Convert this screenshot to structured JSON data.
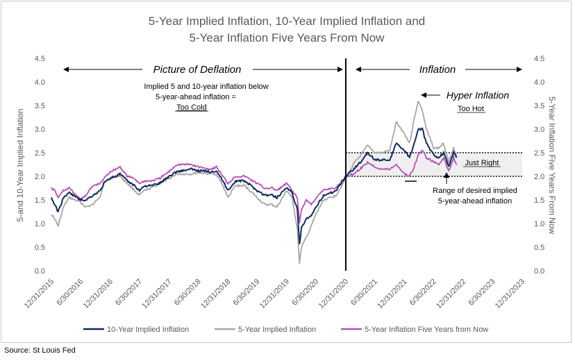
{
  "source": "Source: St Louis Fed",
  "chart_data": {
    "type": "line",
    "title_line1": "5-Year Implied Inflation, 10-Year Implied Inflation and",
    "title_line2": "5-Year Inflation Five Years From Now",
    "ylabel": "5-and 10-Year Implied Inflation",
    "ylabel_right": "5-Year Inflation Five Years From Now",
    "ylim": [
      0,
      4.5
    ],
    "yticks": [
      "0.0",
      "0.5",
      "1.0",
      "1.5",
      "2.0",
      "2.5",
      "3.0",
      "3.5",
      "4.0",
      "4.5"
    ],
    "xlim": [
      "2015-12-31",
      "2023-12-31"
    ],
    "xticks": [
      "12/31/2015",
      "6/30/2016",
      "12/31/2016",
      "6/30/2017",
      "12/31/2017",
      "6/30/2018",
      "12/31/2018",
      "6/30/2019",
      "12/31/2019",
      "6/30/2020",
      "12/31/2020",
      "6/30/2021",
      "12/31/2021",
      "6/30/2022",
      "12/31/2022",
      "6/30/2023",
      "12/31/2023"
    ],
    "divider_date": "2020-12-31",
    "band": [
      2.0,
      2.5
    ],
    "band_end": "2023-12-31",
    "colors": {
      "ten_year": "#0f2a5e",
      "five_year": "#a6a6a6",
      "five_fwd": "#b54fb8"
    },
    "series": [
      {
        "key": "ten_year",
        "name": "10-Year Implied Inflation",
        "points": [
          [
            "2015-12-31",
            1.55
          ],
          [
            "2016-01-20",
            1.4
          ],
          [
            "2016-02-11",
            1.25
          ],
          [
            "2016-03-15",
            1.55
          ],
          [
            "2016-04-20",
            1.65
          ],
          [
            "2016-06-30",
            1.5
          ],
          [
            "2016-07-31",
            1.5
          ],
          [
            "2016-09-15",
            1.6
          ],
          [
            "2016-10-31",
            1.7
          ],
          [
            "2016-11-20",
            1.85
          ],
          [
            "2016-12-31",
            1.97
          ],
          [
            "2017-01-31",
            2.0
          ],
          [
            "2017-03-01",
            2.05
          ],
          [
            "2017-04-15",
            1.9
          ],
          [
            "2017-05-31",
            1.8
          ],
          [
            "2017-06-30",
            1.7
          ],
          [
            "2017-07-31",
            1.8
          ],
          [
            "2017-09-10",
            1.8
          ],
          [
            "2017-10-31",
            1.85
          ],
          [
            "2017-12-31",
            2.0
          ],
          [
            "2018-02-15",
            2.1
          ],
          [
            "2018-05-15",
            2.15
          ],
          [
            "2018-06-30",
            2.12
          ],
          [
            "2018-09-15",
            2.1
          ],
          [
            "2018-10-20",
            2.12
          ],
          [
            "2018-11-30",
            1.9
          ],
          [
            "2018-12-31",
            1.7
          ],
          [
            "2019-02-15",
            1.9
          ],
          [
            "2019-04-15",
            1.9
          ],
          [
            "2019-06-30",
            1.7
          ],
          [
            "2019-08-15",
            1.6
          ],
          [
            "2019-09-30",
            1.6
          ],
          [
            "2019-10-31",
            1.55
          ],
          [
            "2019-12-31",
            1.77
          ],
          [
            "2020-02-01",
            1.65
          ],
          [
            "2020-03-05",
            1.3
          ],
          [
            "2020-03-19",
            0.55
          ],
          [
            "2020-03-31",
            0.9
          ],
          [
            "2020-04-30",
            1.1
          ],
          [
            "2020-05-31",
            1.15
          ],
          [
            "2020-06-30",
            1.35
          ],
          [
            "2020-08-15",
            1.6
          ],
          [
            "2020-09-30",
            1.65
          ],
          [
            "2020-10-31",
            1.7
          ],
          [
            "2020-12-31",
            2.0
          ],
          [
            "2021-02-15",
            2.15
          ],
          [
            "2021-04-15",
            2.35
          ],
          [
            "2021-05-15",
            2.5
          ],
          [
            "2021-06-30",
            2.35
          ],
          [
            "2021-08-15",
            2.35
          ],
          [
            "2021-09-30",
            2.35
          ],
          [
            "2021-11-10",
            2.7
          ],
          [
            "2021-12-31",
            2.55
          ],
          [
            "2022-01-31",
            2.4
          ],
          [
            "2022-02-28",
            2.7
          ],
          [
            "2022-03-25",
            3.0
          ],
          [
            "2022-04-20",
            3.0
          ],
          [
            "2022-05-15",
            2.7
          ],
          [
            "2022-06-30",
            2.45
          ],
          [
            "2022-07-31",
            2.4
          ],
          [
            "2022-08-31",
            2.5
          ],
          [
            "2022-09-30",
            2.2
          ],
          [
            "2022-10-31",
            2.5
          ],
          [
            "2022-11-20",
            2.4
          ]
        ]
      },
      {
        "key": "five_year",
        "name": "5-Year Implied Inflation",
        "points": [
          [
            "2015-12-31",
            1.2
          ],
          [
            "2016-01-20",
            1.1
          ],
          [
            "2016-02-11",
            0.95
          ],
          [
            "2016-03-15",
            1.35
          ],
          [
            "2016-04-20",
            1.55
          ],
          [
            "2016-06-30",
            1.45
          ],
          [
            "2016-07-31",
            1.35
          ],
          [
            "2016-09-15",
            1.4
          ],
          [
            "2016-10-31",
            1.6
          ],
          [
            "2016-11-20",
            1.85
          ],
          [
            "2016-12-31",
            1.95
          ],
          [
            "2017-01-31",
            2.0
          ],
          [
            "2017-03-01",
            2.0
          ],
          [
            "2017-04-15",
            1.85
          ],
          [
            "2017-05-31",
            1.7
          ],
          [
            "2017-06-30",
            1.6
          ],
          [
            "2017-07-31",
            1.7
          ],
          [
            "2017-09-10",
            1.75
          ],
          [
            "2017-10-31",
            1.85
          ],
          [
            "2017-12-31",
            1.95
          ],
          [
            "2018-02-15",
            2.05
          ],
          [
            "2018-05-15",
            2.05
          ],
          [
            "2018-06-30",
            2.08
          ],
          [
            "2018-09-15",
            2.05
          ],
          [
            "2018-10-20",
            2.05
          ],
          [
            "2018-11-30",
            1.8
          ],
          [
            "2018-12-31",
            1.55
          ],
          [
            "2019-02-15",
            1.8
          ],
          [
            "2019-04-15",
            1.8
          ],
          [
            "2019-06-30",
            1.55
          ],
          [
            "2019-08-15",
            1.4
          ],
          [
            "2019-09-30",
            1.4
          ],
          [
            "2019-10-31",
            1.35
          ],
          [
            "2019-12-31",
            1.7
          ],
          [
            "2020-02-01",
            1.55
          ],
          [
            "2020-03-05",
            0.9
          ],
          [
            "2020-03-19",
            0.15
          ],
          [
            "2020-03-31",
            0.5
          ],
          [
            "2020-04-30",
            0.7
          ],
          [
            "2020-05-31",
            0.95
          ],
          [
            "2020-06-30",
            1.2
          ],
          [
            "2020-08-15",
            1.5
          ],
          [
            "2020-09-30",
            1.55
          ],
          [
            "2020-10-31",
            1.6
          ],
          [
            "2020-12-31",
            1.95
          ],
          [
            "2021-02-15",
            2.25
          ],
          [
            "2021-04-15",
            2.5
          ],
          [
            "2021-05-15",
            2.65
          ],
          [
            "2021-06-30",
            2.5
          ],
          [
            "2021-08-15",
            2.5
          ],
          [
            "2021-09-30",
            2.55
          ],
          [
            "2021-11-10",
            3.15
          ],
          [
            "2021-12-31",
            2.9
          ],
          [
            "2022-01-31",
            2.7
          ],
          [
            "2022-02-28",
            3.2
          ],
          [
            "2022-03-25",
            3.6
          ],
          [
            "2022-04-20",
            3.4
          ],
          [
            "2022-05-15",
            3.0
          ],
          [
            "2022-06-30",
            2.6
          ],
          [
            "2022-07-31",
            2.6
          ],
          [
            "2022-08-31",
            2.7
          ],
          [
            "2022-09-30",
            2.3
          ],
          [
            "2022-10-31",
            2.6
          ],
          [
            "2022-11-20",
            2.4
          ]
        ]
      },
      {
        "key": "five_fwd",
        "name": "5-Year Inflation Five Years from Now",
        "points": [
          [
            "2015-12-31",
            1.75
          ],
          [
            "2016-01-20",
            1.7
          ],
          [
            "2016-02-11",
            1.55
          ],
          [
            "2016-03-15",
            1.7
          ],
          [
            "2016-04-20",
            1.75
          ],
          [
            "2016-06-30",
            1.5
          ],
          [
            "2016-07-31",
            1.6
          ],
          [
            "2016-09-15",
            1.8
          ],
          [
            "2016-10-31",
            1.85
          ],
          [
            "2016-11-20",
            1.95
          ],
          [
            "2016-12-31",
            2.1
          ],
          [
            "2017-01-31",
            2.15
          ],
          [
            "2017-03-01",
            2.2
          ],
          [
            "2017-04-15",
            2.0
          ],
          [
            "2017-05-31",
            1.95
          ],
          [
            "2017-06-30",
            1.85
          ],
          [
            "2017-07-31",
            1.9
          ],
          [
            "2017-09-10",
            1.9
          ],
          [
            "2017-10-31",
            1.95
          ],
          [
            "2017-12-31",
            2.1
          ],
          [
            "2018-02-15",
            2.25
          ],
          [
            "2018-05-15",
            2.25
          ],
          [
            "2018-06-30",
            2.2
          ],
          [
            "2018-09-15",
            2.15
          ],
          [
            "2018-10-20",
            2.2
          ],
          [
            "2018-11-30",
            2.0
          ],
          [
            "2018-12-31",
            1.85
          ],
          [
            "2019-02-15",
            2.0
          ],
          [
            "2019-04-15",
            2.0
          ],
          [
            "2019-06-30",
            1.85
          ],
          [
            "2019-08-15",
            1.75
          ],
          [
            "2019-09-30",
            1.75
          ],
          [
            "2019-10-31",
            1.7
          ],
          [
            "2019-12-31",
            1.85
          ],
          [
            "2020-02-01",
            1.7
          ],
          [
            "2020-03-05",
            1.55
          ],
          [
            "2020-03-19",
            1.0
          ],
          [
            "2020-03-31",
            1.3
          ],
          [
            "2020-04-30",
            1.5
          ],
          [
            "2020-05-31",
            1.4
          ],
          [
            "2020-06-30",
            1.55
          ],
          [
            "2020-08-15",
            1.7
          ],
          [
            "2020-09-30",
            1.75
          ],
          [
            "2020-10-31",
            1.75
          ],
          [
            "2020-12-31",
            2.0
          ],
          [
            "2021-02-15",
            2.05
          ],
          [
            "2021-04-15",
            2.2
          ],
          [
            "2021-05-15",
            2.3
          ],
          [
            "2021-06-30",
            2.2
          ],
          [
            "2021-08-15",
            2.15
          ],
          [
            "2021-09-30",
            2.15
          ],
          [
            "2021-11-10",
            2.25
          ],
          [
            "2021-12-31",
            2.05
          ],
          [
            "2022-01-31",
            2.0
          ],
          [
            "2022-02-28",
            2.2
          ],
          [
            "2022-03-25",
            2.45
          ],
          [
            "2022-04-20",
            2.55
          ],
          [
            "2022-05-15",
            2.4
          ],
          [
            "2022-06-30",
            2.3
          ],
          [
            "2022-07-31",
            2.25
          ],
          [
            "2022-08-31",
            2.4
          ],
          [
            "2022-09-30",
            2.1
          ],
          [
            "2022-10-31",
            2.4
          ],
          [
            "2022-11-20",
            2.25
          ]
        ]
      }
    ],
    "annotations": {
      "deflation_label": "Picture of Deflation",
      "inflation_label": "Inflation",
      "cold_line1": "Implied 5 and 10-year inflation below",
      "cold_line2": "5-year-ahead inflation =",
      "cold_line3": "Too Cold",
      "hyper_label": "Hyper Inflation",
      "hot_label": "Too Hot",
      "just_right_label": "Just Right",
      "range_line1": "Range of desired implied",
      "range_line2": "5-year-ahead inflation"
    }
  }
}
